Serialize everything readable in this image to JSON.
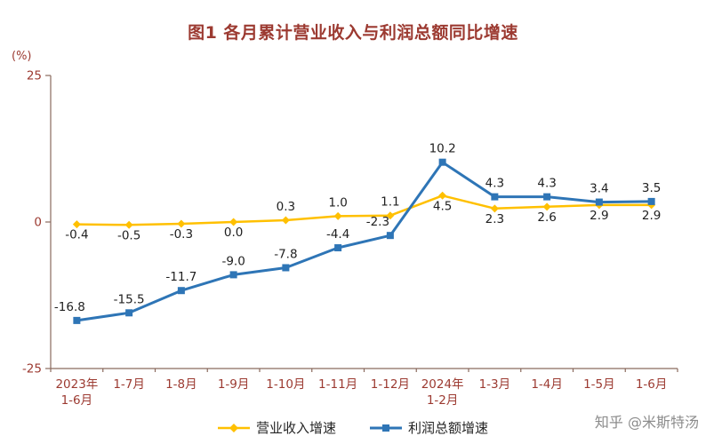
{
  "page": {
    "title": "图1 各月累计营业收入与利润总额同比增速",
    "unit_label": "(%)",
    "watermark": "知乎 @米斯特汤"
  },
  "chart_data": {
    "type": "line",
    "title": "图1 各月累计营业收入与利润总额同比增速",
    "xlabel": "",
    "ylabel": "(%)",
    "ylim": [
      -25,
      25
    ],
    "yticks": [
      25,
      0,
      -25
    ],
    "grid": false,
    "legend_position": "bottom",
    "categories": [
      "2023年\n1-6月",
      "1-7月",
      "1-8月",
      "1-9月",
      "1-10月",
      "1-11月",
      "1-12月",
      "2024年\n1-2月",
      "1-3月",
      "1-4月",
      "1-5月",
      "1-6月"
    ],
    "series": [
      {
        "key": "revenue-growth",
        "name": "营业收入增速",
        "color": "#FFC000",
        "marker": "diamond",
        "line_width": 2.5,
        "values": [
          -0.4,
          -0.5,
          -0.3,
          0.0,
          0.3,
          1.0,
          1.1,
          4.5,
          2.3,
          2.6,
          2.9,
          2.9
        ],
        "label_side": [
          "below",
          "below",
          "below",
          "below",
          "above",
          "above",
          "above",
          "below",
          "below",
          "below",
          "below",
          "below"
        ],
        "label_dx": [
          0,
          0,
          0,
          0,
          0,
          0,
          0,
          0,
          0,
          0,
          0,
          0
        ]
      },
      {
        "key": "profit-growth",
        "name": "利润总额增速",
        "color": "#2E75B6",
        "marker": "square",
        "line_width": 3,
        "values": [
          -16.8,
          -15.5,
          -11.7,
          -9.0,
          -7.8,
          -4.4,
          -2.3,
          10.2,
          4.3,
          4.3,
          3.4,
          3.5
        ],
        "label_side": [
          "above",
          "above",
          "above",
          "above",
          "above",
          "above",
          "above",
          "above",
          "above",
          "above",
          "above",
          "above"
        ],
        "label_dx": [
          -8,
          0,
          0,
          0,
          0,
          0,
          -14,
          0,
          0,
          0,
          0,
          0
        ]
      }
    ],
    "colors": {
      "background": "#FFFFFF",
      "title_text": "#9C3A31",
      "axis_text": "#9C3A31",
      "axis_line": "#8A6A5E",
      "data_label": "#1F1F1F",
      "legend_text": "#262626",
      "watermark": "#8C8C8C"
    }
  }
}
